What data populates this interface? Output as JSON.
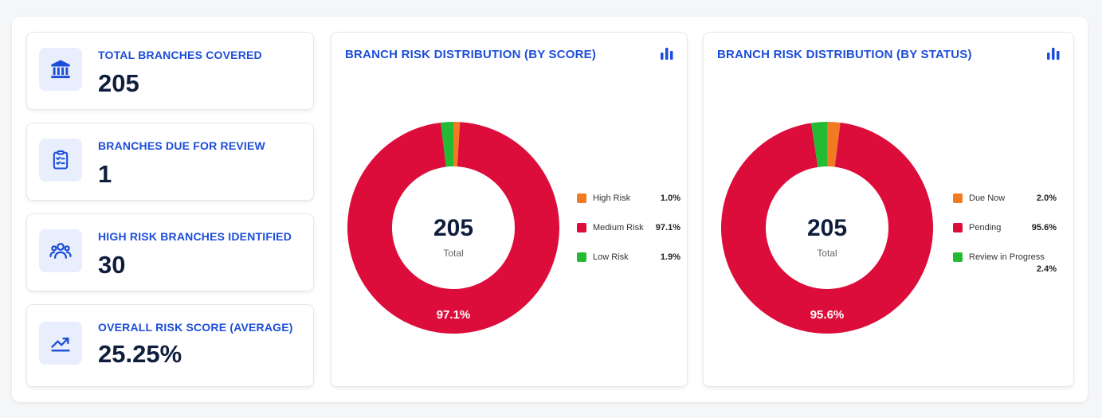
{
  "kpis": [
    {
      "label": "TOTAL BRANCHES COVERED",
      "value": "205",
      "icon": "bank-icon"
    },
    {
      "label": "BRANCHES DUE FOR REVIEW",
      "value": "1",
      "icon": "clipboard-check-icon"
    },
    {
      "label": "HIGH RISK BRANCHES IDENTIFIED",
      "value": "30",
      "icon": "users-icon"
    },
    {
      "label": "OVERALL RISK SCORE (AVERAGE)",
      "value": "25.25%",
      "icon": "trend-up-icon"
    }
  ],
  "colors": {
    "accent": "#1d4ed8",
    "navy": "#0f1e3d",
    "red": "#dc0d3a",
    "orange": "#f07b22",
    "green": "#22bb33"
  },
  "chart_data": [
    {
      "type": "pie",
      "title": "BRANCH RISK DISTRIBUTION (BY SCORE)",
      "center_value": "205",
      "center_label": "Total",
      "slice_label": "97.1%",
      "legend_position": "right",
      "categories": [
        "High Risk",
        "Medium Risk",
        "Low Risk"
      ],
      "values": [
        1.0,
        97.1,
        1.9
      ],
      "value_labels": [
        "1.0%",
        "97.1%",
        "1.9%"
      ],
      "colors": [
        "#f07b22",
        "#dc0d3a",
        "#22bb33"
      ]
    },
    {
      "type": "pie",
      "title": "BRANCH RISK DISTRIBUTION (BY STATUS)",
      "center_value": "205",
      "center_label": "Total",
      "slice_label": "95.6%",
      "legend_position": "right",
      "categories": [
        "Due Now",
        "Pending",
        "Review in Progress"
      ],
      "values": [
        2.0,
        95.6,
        2.4
      ],
      "value_labels": [
        "2.0%",
        "95.6%",
        "2.4%"
      ],
      "colors": [
        "#f07b22",
        "#dc0d3a",
        "#22bb33"
      ]
    }
  ]
}
